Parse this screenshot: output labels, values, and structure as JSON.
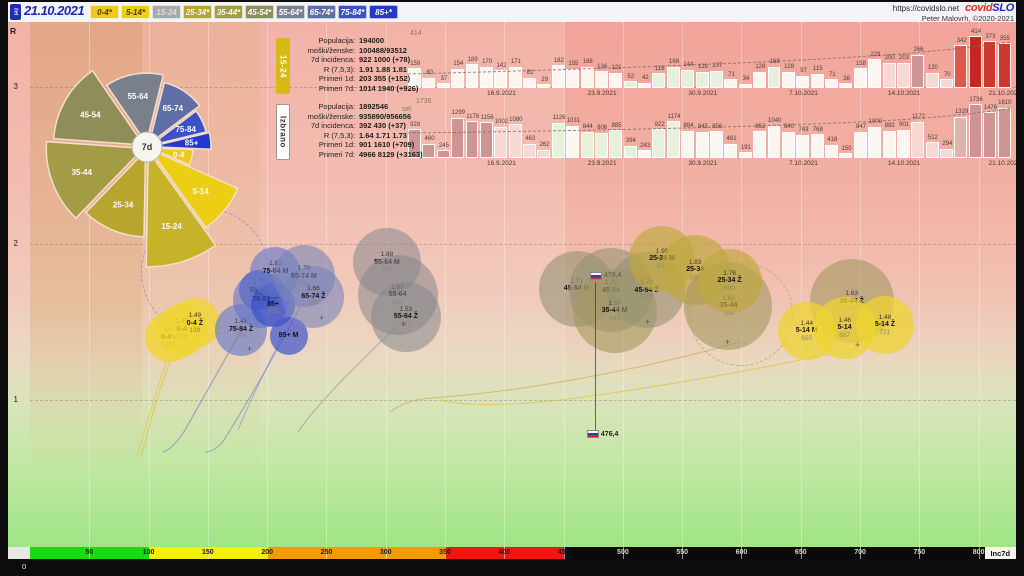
{
  "header": {
    "weekday": "čet",
    "date": "21.10.2021",
    "site": "https://covidslo.net",
    "brand_covid": "covid",
    "brand_slo": "SLO",
    "credit": "Peter Malovrh, ©2020-2021",
    "age_buttons": [
      {
        "label": "0-4*",
        "bg": "#f0c818",
        "fg": "#4a3c00",
        "selected": false
      },
      {
        "label": "5-14*",
        "bg": "#ecce14",
        "fg": "#4a3c00",
        "selected": false
      },
      {
        "label": "15-24",
        "bg": "#a7a9ab",
        "fg": "#dcdddf",
        "selected": true
      },
      {
        "label": "25-34*",
        "bg": "#b8a52e",
        "fg": "#ffffff",
        "selected": false
      },
      {
        "label": "35-44*",
        "bg": "#a39b45",
        "fg": "#ffffff",
        "selected": false
      },
      {
        "label": "45-54*",
        "bg": "#8f8e58",
        "fg": "#ffffff",
        "selected": false
      },
      {
        "label": "55-64*",
        "bg": "#7a8190",
        "fg": "#ffffff",
        "selected": false
      },
      {
        "label": "65-74*",
        "bg": "#5f6fa6",
        "fg": "#ffffff",
        "selected": false
      },
      {
        "label": "75-84*",
        "bg": "#3b51c4",
        "fg": "#ffffff",
        "selected": false
      },
      {
        "label": "85+*",
        "bg": "#2438cf",
        "fg": "#ffffff",
        "selected": false
      }
    ]
  },
  "axes": {
    "y_label": "R",
    "y_ticks": [
      {
        "label": "3",
        "R": 3
      },
      {
        "label": "2",
        "R": 2
      },
      {
        "label": "1",
        "R": 1
      }
    ],
    "x_origin": "0",
    "x_unit": "Inc7d",
    "x_ticks": [
      50,
      100,
      150,
      200,
      250,
      300,
      350,
      400,
      450,
      500,
      550,
      600,
      650,
      700,
      750,
      800
    ]
  },
  "colorbar_segments": [
    {
      "from": 0,
      "to": 100,
      "color": "#1bdb10"
    },
    {
      "from": 100,
      "to": 200,
      "color": "#f6ef0c"
    },
    {
      "from": 200,
      "to": 350,
      "color": "#f59b0b"
    },
    {
      "from": 350,
      "to": 450,
      "color": "#ee1810"
    },
    {
      "from": 450,
      "to": 805,
      "color": "#0a0a0a"
    }
  ],
  "info_boxes": [
    {
      "tab": "15-24",
      "tab_bg": "#d8ba17",
      "tab_fg": "#ffffff",
      "rows": [
        [
          "Populacija",
          "194000"
        ],
        [
          "moški/ženske",
          "100488/93512"
        ],
        [
          "7d incidenca",
          "922 1000 (+78)"
        ],
        [
          "R (7,5,3)",
          "1.91 1.88 1.81"
        ],
        [
          "Primeri 1d",
          "203 355 (+152)"
        ],
        [
          "Primeri 7d",
          "1014 1940 (+926)"
        ]
      ]
    },
    {
      "tab": "Izbrano",
      "tab_bg": "#fdfcf8",
      "tab_fg": "#333333",
      "rows": [
        [
          "Populacija",
          "1892546"
        ],
        [
          "moški/ženske",
          "935890/956656"
        ],
        [
          "7d incidenca",
          "392 430 (+37)"
        ],
        [
          "R (7,5,3)",
          "1.64 1.71 1.73"
        ],
        [
          "Primeri 1d",
          "901 1610 (+709)"
        ],
        [
          "Primeri 7d",
          "4966 8129 (+3163)"
        ]
      ]
    }
  ],
  "chart_data": {
    "bar_top": {
      "type": "bar",
      "group": "15-24",
      "max_label": "414",
      "ylim": [
        0,
        414
      ],
      "values": [
        159,
        80,
        37,
        154,
        189,
        170,
        142,
        171,
        81,
        29,
        182,
        155,
        168,
        134,
        121,
        52,
        42,
        116,
        168,
        144,
        128,
        137,
        71,
        34,
        128,
        168,
        128,
        97,
        115,
        71,
        38,
        158,
        229,
        200,
        203,
        266,
        120,
        70,
        342,
        414,
        373,
        355
      ],
      "bar_colors": [
        "w",
        "w",
        "w",
        "w",
        "w",
        "w",
        "w",
        "w",
        "w",
        "w",
        "w",
        "w",
        "w",
        "w",
        "w",
        "g",
        "w",
        "g",
        "g",
        "g",
        "g",
        "g",
        "w",
        "w",
        "w",
        "g",
        "w",
        "w",
        "w",
        "w",
        "w",
        "w",
        "w",
        "p",
        "p",
        "m",
        "p",
        "p",
        "r",
        "R",
        "q",
        "q"
      ],
      "x_tick_labels": [
        "16.9.2021",
        "23.9.2021",
        "30.9.2021",
        "7.10.2021",
        "14.10.2021",
        "21.10.2021"
      ]
    },
    "bar_bottom": {
      "type": "bar",
      "group": "Izbrano",
      "corner_label": "sel.",
      "max_label": "1736",
      "ylim": [
        0,
        1736
      ],
      "values": [
        928,
        460,
        245,
        1299,
        1176,
        1156,
        1002,
        1080,
        463,
        262,
        1126,
        1031,
        844,
        806,
        885,
        394,
        243,
        922,
        1174,
        884,
        845,
        856,
        461,
        191,
        852,
        1040,
        840,
        743,
        768,
        418,
        150,
        847,
        1000,
        882,
        901,
        1172,
        512,
        294,
        1329,
        1736,
        1476,
        1610
      ],
      "bar_colors": [
        "m",
        "m",
        "m",
        "m",
        "m",
        "m",
        "p",
        "p",
        "p",
        "p",
        "g",
        "w",
        "g",
        "g",
        "g",
        "g",
        "w",
        "g",
        "g",
        "w",
        "w",
        "w",
        "w",
        "w",
        "w",
        "w",
        "w",
        "w",
        "w",
        "w",
        "w",
        "w",
        "w",
        "w",
        "w",
        "p",
        "p",
        "p",
        "M",
        "m",
        "m",
        "m"
      ],
      "x_tick_labels": [
        "16.9.2021",
        "23.9.2021",
        "30.9.2021",
        "7.10.2021",
        "14.10.2021",
        "21.10.2021"
      ]
    },
    "scatter": {
      "type": "scatter",
      "xlabel": "Inc7d",
      "ylabel": "R",
      "xlim": [
        0,
        830
      ],
      "ylim": [
        0.9,
        3.3
      ],
      "points": [
        {
          "label": "0-4 M",
          "r_label": "1.40",
          "inc_label": "118",
          "R": 1.4,
          "inc": 118,
          "size": 25,
          "c": "y"
        },
        {
          "label": "0-4",
          "r_label": "1.45",
          "inc_label": "128",
          "R": 1.45,
          "inc": 128,
          "size": 26,
          "c": "y"
        },
        {
          "label": "0-4 Ž",
          "r_label": "1.49",
          "inc_label": "139",
          "R": 1.49,
          "inc": 139,
          "size": 25,
          "c": "y"
        },
        {
          "label": "75-84 Ž",
          "r_label": "1.45",
          "inc_label": "178",
          "R": 1.45,
          "inc": 178,
          "size": 26,
          "c": "b"
        },
        {
          "label": "85+ Ž",
          "r_label": "1.70",
          "inc_label": "193",
          "R": 1.7,
          "inc": 193,
          "size": 20,
          "c": "B"
        },
        {
          "label": "75-84",
          "r_label": "1.64",
          "inc_label": "195",
          "R": 1.64,
          "inc": 195,
          "size": 28,
          "c": "b"
        },
        {
          "label": "85+",
          "r_label": "1.61",
          "inc_label": "205",
          "R": 1.61,
          "inc": 205,
          "size": 22,
          "c": "B"
        },
        {
          "label": "75-84 M",
          "r_label": "1.82",
          "inc_label": "207",
          "R": 1.82,
          "inc": 207,
          "size": 25,
          "c": "b"
        },
        {
          "label": "85+ M",
          "r_label": "",
          "inc_label": "",
          "R": 1.41,
          "inc": 218,
          "size": 19,
          "c": "B"
        },
        {
          "label": "65-74 M",
          "r_label": "1.79",
          "inc_label": "231",
          "R": 1.79,
          "inc": 231,
          "size": 31,
          "c": "s"
        },
        {
          "label": "65-74 Ž",
          "r_label": "1.66",
          "inc_label": "239",
          "R": 1.66,
          "inc": 239,
          "size": 31,
          "c": "s"
        },
        {
          "label": "55-64 M",
          "r_label": "1.88",
          "inc_label": "301",
          "R": 1.88,
          "inc": 301,
          "size": 34,
          "c": "g"
        },
        {
          "label": "55-64",
          "r_label": "1.67",
          "inc_label": "310",
          "R": 1.67,
          "inc": 310,
          "size": 40,
          "c": "g"
        },
        {
          "label": "55-64 Ž",
          "r_label": "1.53",
          "inc_label": "317",
          "R": 1.53,
          "inc": 317,
          "size": 35,
          "c": "g"
        },
        {
          "label": "45-54 M",
          "r_label": "1.71",
          "inc_label": "461",
          "R": 1.71,
          "inc": 461,
          "size": 38,
          "c": "o"
        },
        {
          "label": "45-54",
          "r_label": "1.70",
          "inc_label": "490",
          "R": 1.7,
          "inc": 490,
          "size": 42,
          "c": "o"
        },
        {
          "label": "35-44 M",
          "r_label": "1.57",
          "inc_label": "493",
          "R": 1.57,
          "inc": 493,
          "size": 42,
          "c": "t"
        },
        {
          "label": "45-54 Ž",
          "r_label": "1.70",
          "inc_label": "520",
          "R": 1.7,
          "inc": 520,
          "size": 38,
          "c": "o"
        },
        {
          "label": "25-34 M",
          "r_label": "1.90",
          "inc_label": "533",
          "R": 1.9,
          "inc": 533,
          "size": 33,
          "c": "d"
        },
        {
          "label": "25-34",
          "r_label": "1.83",
          "inc_label": "561",
          "R": 1.83,
          "inc": 561,
          "size": 35,
          "c": "d"
        },
        {
          "label": "35-44",
          "r_label": "1.60",
          "inc_label": "589",
          "R": 1.6,
          "inc": 589,
          "size": 44,
          "c": "t"
        },
        {
          "label": "25-34 Ž",
          "r_label": "1.76",
          "inc_label": "590",
          "R": 1.76,
          "inc": 590,
          "size": 32,
          "c": "d"
        },
        {
          "label": "35-44 Ž",
          "r_label": "1.63",
          "inc_label": "693",
          "R": 1.63,
          "inc": 693,
          "size": 42,
          "c": "t"
        },
        {
          "label": "5-14 M",
          "r_label": "1.44",
          "inc_label": "655",
          "R": 1.44,
          "inc": 655,
          "size": 29,
          "c": "y2"
        },
        {
          "label": "5-14",
          "r_label": "1.46",
          "inc_label": "687",
          "R": 1.46,
          "inc": 687,
          "size": 31,
          "c": "y2"
        },
        {
          "label": "5-14 Ž",
          "r_label": "1.48",
          "inc_label": "721",
          "R": 1.48,
          "inc": 721,
          "size": 29,
          "c": "y2"
        }
      ],
      "national_marker": {
        "label": "476,4",
        "inc": 476.4
      },
      "ghost_circles": [
        {
          "inc": 148,
          "R": 1.82,
          "rad": 64,
          "color": "rgba(95,115,205,0.55)"
        },
        {
          "inc": 600,
          "R": 1.55,
          "rad": 52,
          "color": "rgba(170,155,80,0.65)"
        }
      ]
    },
    "rose": {
      "type": "rose-pie",
      "center_label": "7d",
      "slices": [
        {
          "label": "55-64",
          "a0": -34.5,
          "a1": 14,
          "r": 70,
          "color": "#79808c"
        },
        {
          "label": "65-74",
          "a0": 14,
          "a1": 53,
          "r": 63,
          "color": "#5f6fa6"
        },
        {
          "label": "75-84",
          "a0": 53,
          "a1": 76.5,
          "r": 57,
          "color": "#3b51c4"
        },
        {
          "label": "85+",
          "a0": 76.5,
          "a1": 92.5,
          "r": 60,
          "color": "#2438cf"
        },
        {
          "label": "0-4",
          "a0": 92.5,
          "a1": 114,
          "r": 42,
          "color": "#f0c818"
        },
        {
          "label": "5-14",
          "a0": 114,
          "a1": 144.5,
          "r": 96,
          "color": "#ecce14"
        },
        {
          "label": "15-24",
          "a0": 144.5,
          "a1": 181,
          "r": 116,
          "color": "#c7b32a"
        },
        {
          "label": "25-34",
          "a0": 181,
          "a1": 224,
          "r": 86,
          "color": "#b8a52e"
        },
        {
          "label": "35-44",
          "a0": 224,
          "a1": 274,
          "r": 97,
          "color": "#a39b45"
        },
        {
          "label": "45-54",
          "a0": 274,
          "a1": 325.5,
          "r": 90,
          "color": "#8f8e58"
        }
      ]
    }
  },
  "palette": {
    "bar": {
      "w": "#fbf7f0",
      "g": "#e6f0db",
      "p": "#f6d9d3",
      "m": "#ce9595",
      "M": "#e0b4ae",
      "r": "#de584c",
      "R": "#c4271e",
      "q": "#cd382e"
    },
    "bubble": {
      "y": "rgba(240,212,50,0.8)",
      "y2": "rgba(238,211,48,0.75)",
      "b": "rgba(100,118,200,0.62)",
      "B": "rgba(58,78,205,0.68)",
      "s": "rgba(120,132,185,0.6)",
      "g": "rgba(135,135,140,0.55)",
      "o": "rgba(148,146,116,0.6)",
      "t": "rgba(163,152,95,0.6)",
      "d": "rgba(190,168,62,0.68)"
    }
  }
}
